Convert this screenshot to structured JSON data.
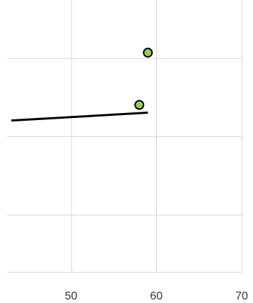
{
  "chart_data": {
    "type": "scatter",
    "title": "",
    "xlabel": "",
    "ylabel": "",
    "x_ticks": [
      "50",
      "60",
      "70"
    ],
    "grid": true,
    "legend": "none",
    "series": [
      {
        "kind": "points",
        "points": [
          {
            "x": 59.0,
            "y": 3.02
          },
          {
            "x": 58.0,
            "y": 2.82
          }
        ],
        "color": "#92d050"
      },
      {
        "kind": "trendline",
        "points": [
          {
            "x": 43.0,
            "y": 2.76
          },
          {
            "x": 59.0,
            "y": 2.79
          }
        ],
        "color": "#000000"
      }
    ]
  }
}
